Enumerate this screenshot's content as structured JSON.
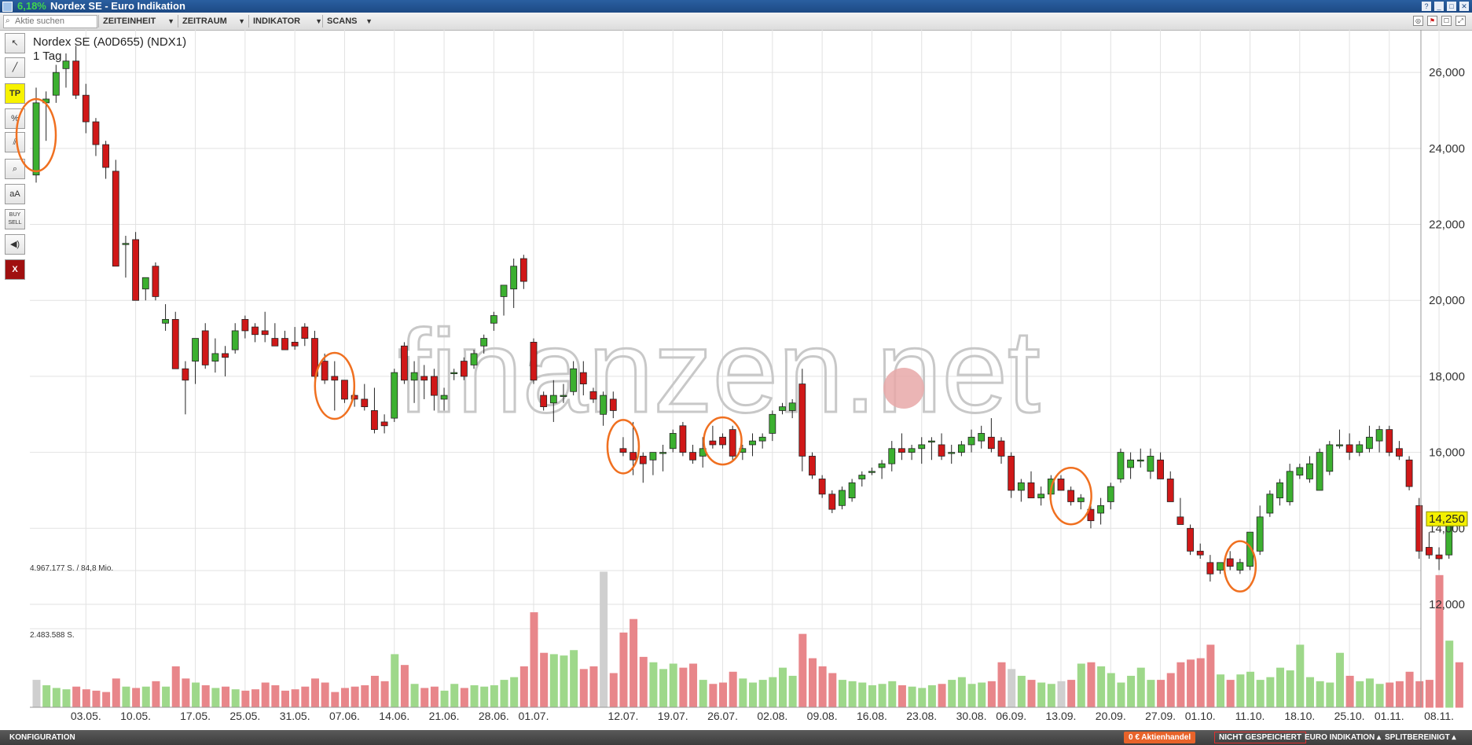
{
  "window": {
    "change_pct": "6,18%",
    "title": "Nordex SE - Euro Indikation"
  },
  "toolbar": {
    "search_placeholder": "Aktie suchen",
    "menus": [
      "ZEITEINHEIT",
      "ZEITRAUM",
      "INDIKATOR",
      "SCANS"
    ]
  },
  "side_tools": [
    {
      "name": "cursor-icon",
      "label": "↖"
    },
    {
      "name": "line-icon",
      "label": "╱"
    },
    {
      "name": "tp-icon",
      "label": "TP"
    },
    {
      "name": "percent-icon",
      "label": "%"
    },
    {
      "name": "parallel-lines-icon",
      "label": "⫽"
    },
    {
      "name": "zoom-icon",
      "label": "⌕"
    },
    {
      "name": "text-size-icon",
      "label": "aA"
    },
    {
      "name": "buy-sell-icon",
      "label": "BUY SELL"
    },
    {
      "name": "sound-icon",
      "label": "◀)"
    },
    {
      "name": "close-icon",
      "label": "X"
    }
  ],
  "status": {
    "config": "KONFIGURATION",
    "trading": "0 € Aktienhandel",
    "not_saved": "NICHT GESPEICHERT",
    "indication": "EURO INDIKATION ▴",
    "split": "SPLITBEREINIGT ▴"
  },
  "colors": {
    "up": "#3cb030",
    "down": "#d01818",
    "vol_up": "#9ed88a",
    "vol_down": "#e8868a",
    "annot": "#f07020"
  },
  "chart_data": {
    "type": "candlestick",
    "title": "Nordex SE (A0D655) (NDX1)",
    "subtitle": "1 Tag",
    "watermark": "finanzen.net",
    "price_ticks": [
      12000,
      14000,
      16000,
      18000,
      20000,
      22000,
      24000,
      26000
    ],
    "price_tick_labels": [
      "12,000",
      "14,000",
      "16,000",
      "18,000",
      "20,000",
      "22,000",
      "24,000",
      "26,000"
    ],
    "last_price_label": "14,250",
    "volume_labels": [
      "4.967.177 S. / 84,8 Mio.",
      "2.483.588 S."
    ],
    "x_labels": [
      "03.05.",
      "10.05.",
      "17.05.",
      "25.05.",
      "31.05.",
      "07.06.",
      "14.06.",
      "21.06.",
      "28.06.",
      "01.07.",
      "12.07.",
      "19.07.",
      "26.07.",
      "02.08.",
      "09.08.",
      "16.08.",
      "23.08.",
      "30.08.",
      "06.09.",
      "13.09.",
      "20.09.",
      "27.09.",
      "01.10.",
      "11.10.",
      "18.10.",
      "25.10.",
      "01.11.",
      "08.11."
    ],
    "candles": [
      {
        "o": 23300,
        "h": 25600,
        "l": 23100,
        "c": 25200
      },
      {
        "o": 25200,
        "h": 25500,
        "l": 24200,
        "c": 25300
      },
      {
        "o": 25400,
        "h": 26200,
        "l": 25200,
        "c": 26000
      },
      {
        "o": 26100,
        "h": 26500,
        "l": 25600,
        "c": 26300
      },
      {
        "o": 26300,
        "h": 26700,
        "l": 25300,
        "c": 25400
      },
      {
        "o": 25400,
        "h": 25700,
        "l": 24400,
        "c": 24700
      },
      {
        "o": 24700,
        "h": 24800,
        "l": 23800,
        "c": 24100
      },
      {
        "o": 24100,
        "h": 24200,
        "l": 23200,
        "c": 23500
      },
      {
        "o": 23400,
        "h": 23700,
        "l": 20900,
        "c": 20900
      },
      {
        "o": 21500,
        "h": 21700,
        "l": 20600,
        "c": 21500
      },
      {
        "o": 21600,
        "h": 21800,
        "l": 20000,
        "c": 20000
      },
      {
        "o": 20300,
        "h": 20600,
        "l": 20000,
        "c": 20600
      },
      {
        "o": 20900,
        "h": 21000,
        "l": 20000,
        "c": 20100
      },
      {
        "o": 19400,
        "h": 19900,
        "l": 19200,
        "c": 19500
      },
      {
        "o": 19500,
        "h": 19700,
        "l": 18200,
        "c": 18200
      },
      {
        "o": 18200,
        "h": 18400,
        "l": 17000,
        "c": 17900
      },
      {
        "o": 18400,
        "h": 19000,
        "l": 17800,
        "c": 19000
      },
      {
        "o": 19200,
        "h": 19400,
        "l": 18200,
        "c": 18300
      },
      {
        "o": 18400,
        "h": 19000,
        "l": 18100,
        "c": 18600
      },
      {
        "o": 18600,
        "h": 18800,
        "l": 18000,
        "c": 18500
      },
      {
        "o": 18700,
        "h": 19400,
        "l": 18600,
        "c": 19200
      },
      {
        "o": 19500,
        "h": 19600,
        "l": 19000,
        "c": 19200
      },
      {
        "o": 19300,
        "h": 19400,
        "l": 18900,
        "c": 19100
      },
      {
        "o": 19200,
        "h": 19700,
        "l": 18900,
        "c": 19100
      },
      {
        "o": 19000,
        "h": 19400,
        "l": 18800,
        "c": 18800
      },
      {
        "o": 19000,
        "h": 19200,
        "l": 18800,
        "c": 18700
      },
      {
        "o": 18900,
        "h": 19300,
        "l": 18700,
        "c": 18800
      },
      {
        "o": 19300,
        "h": 19400,
        "l": 18800,
        "c": 19000
      },
      {
        "o": 19000,
        "h": 19200,
        "l": 17900,
        "c": 18000
      },
      {
        "o": 18400,
        "h": 18600,
        "l": 17800,
        "c": 17900
      },
      {
        "o": 18000,
        "h": 18400,
        "l": 17100,
        "c": 17900
      },
      {
        "o": 17900,
        "h": 17900,
        "l": 17300,
        "c": 17400
      },
      {
        "o": 17500,
        "h": 17800,
        "l": 17200,
        "c": 17400
      },
      {
        "o": 17400,
        "h": 17800,
        "l": 17100,
        "c": 17200
      },
      {
        "o": 17100,
        "h": 17700,
        "l": 16500,
        "c": 16600
      },
      {
        "o": 16800,
        "h": 17000,
        "l": 16500,
        "c": 16700
      },
      {
        "o": 16900,
        "h": 18200,
        "l": 16800,
        "c": 18100
      },
      {
        "o": 18800,
        "h": 18900,
        "l": 17800,
        "c": 17900
      },
      {
        "o": 17900,
        "h": 18400,
        "l": 17300,
        "c": 18100
      },
      {
        "o": 18000,
        "h": 18300,
        "l": 17400,
        "c": 17900
      },
      {
        "o": 18000,
        "h": 18200,
        "l": 17100,
        "c": 17500
      },
      {
        "o": 17400,
        "h": 17700,
        "l": 17100,
        "c": 17500
      },
      {
        "o": 18100,
        "h": 18200,
        "l": 17900,
        "c": 18100
      },
      {
        "o": 18400,
        "h": 18500,
        "l": 17900,
        "c": 18000
      },
      {
        "o": 18300,
        "h": 18700,
        "l": 18200,
        "c": 18600
      },
      {
        "o": 18800,
        "h": 19100,
        "l": 18600,
        "c": 19000
      },
      {
        "o": 19400,
        "h": 19700,
        "l": 19200,
        "c": 19600
      },
      {
        "o": 20100,
        "h": 20400,
        "l": 19600,
        "c": 20400
      },
      {
        "o": 20300,
        "h": 21100,
        "l": 19800,
        "c": 20900
      },
      {
        "o": 21100,
        "h": 21200,
        "l": 20300,
        "c": 20500
      },
      {
        "o": 18900,
        "h": 19000,
        "l": 17800,
        "c": 17900
      },
      {
        "o": 17500,
        "h": 17600,
        "l": 17100,
        "c": 17200
      },
      {
        "o": 17300,
        "h": 17900,
        "l": 16800,
        "c": 17500
      },
      {
        "o": 17500,
        "h": 17800,
        "l": 17300,
        "c": 17500
      },
      {
        "o": 17600,
        "h": 18400,
        "l": 17500,
        "c": 18200
      },
      {
        "o": 18100,
        "h": 18400,
        "l": 17500,
        "c": 17800
      },
      {
        "o": 17600,
        "h": 17700,
        "l": 17300,
        "c": 17400
      },
      {
        "o": 17000,
        "h": 17600,
        "l": 16700,
        "c": 17500
      },
      {
        "o": 17400,
        "h": 17600,
        "l": 16900,
        "c": 17100
      },
      {
        "o": 16100,
        "h": 16400,
        "l": 15900,
        "c": 16000
      },
      {
        "o": 16000,
        "h": 16800,
        "l": 15400,
        "c": 15800
      },
      {
        "o": 15900,
        "h": 16000,
        "l": 15200,
        "c": 15700
      },
      {
        "o": 15800,
        "h": 16000,
        "l": 15400,
        "c": 16000
      },
      {
        "o": 16000,
        "h": 16200,
        "l": 15500,
        "c": 16000
      },
      {
        "o": 16100,
        "h": 16600,
        "l": 16000,
        "c": 16500
      },
      {
        "o": 16700,
        "h": 16800,
        "l": 15900,
        "c": 16000
      },
      {
        "o": 16000,
        "h": 16200,
        "l": 15700,
        "c": 15800
      },
      {
        "o": 15900,
        "h": 16400,
        "l": 15600,
        "c": 16100
      },
      {
        "o": 16300,
        "h": 16700,
        "l": 16100,
        "c": 16200
      },
      {
        "o": 16400,
        "h": 16500,
        "l": 16100,
        "c": 16200
      },
      {
        "o": 16600,
        "h": 16700,
        "l": 15800,
        "c": 15900
      },
      {
        "o": 16000,
        "h": 16200,
        "l": 15800,
        "c": 16100
      },
      {
        "o": 16200,
        "h": 16500,
        "l": 15900,
        "c": 16300
      },
      {
        "o": 16300,
        "h": 16500,
        "l": 16100,
        "c": 16400
      },
      {
        "o": 16500,
        "h": 17100,
        "l": 16300,
        "c": 17000
      },
      {
        "o": 17100,
        "h": 17300,
        "l": 17000,
        "c": 17200
      },
      {
        "o": 17100,
        "h": 17400,
        "l": 16900,
        "c": 17300
      },
      {
        "o": 17800,
        "h": 18200,
        "l": 15500,
        "c": 15900
      },
      {
        "o": 15900,
        "h": 16000,
        "l": 15300,
        "c": 15400
      },
      {
        "o": 15300,
        "h": 15400,
        "l": 14800,
        "c": 14900
      },
      {
        "o": 14900,
        "h": 15000,
        "l": 14400,
        "c": 14500
      },
      {
        "o": 14600,
        "h": 15100,
        "l": 14500,
        "c": 15000
      },
      {
        "o": 14800,
        "h": 15300,
        "l": 14700,
        "c": 15200
      },
      {
        "o": 15300,
        "h": 15500,
        "l": 15100,
        "c": 15400
      },
      {
        "o": 15500,
        "h": 15600,
        "l": 15400,
        "c": 15500
      },
      {
        "o": 15600,
        "h": 15800,
        "l": 15300,
        "c": 15700
      },
      {
        "o": 15700,
        "h": 16300,
        "l": 15500,
        "c": 16100
      },
      {
        "o": 16100,
        "h": 16500,
        "l": 15800,
        "c": 16000
      },
      {
        "o": 16000,
        "h": 16200,
        "l": 15800,
        "c": 16100
      },
      {
        "o": 16100,
        "h": 16400,
        "l": 15700,
        "c": 16200
      },
      {
        "o": 16300,
        "h": 16400,
        "l": 15800,
        "c": 16300
      },
      {
        "o": 16200,
        "h": 16500,
        "l": 15800,
        "c": 15900
      },
      {
        "o": 16000,
        "h": 16200,
        "l": 15700,
        "c": 16000
      },
      {
        "o": 16000,
        "h": 16300,
        "l": 15900,
        "c": 16200
      },
      {
        "o": 16200,
        "h": 16600,
        "l": 16000,
        "c": 16400
      },
      {
        "o": 16300,
        "h": 16700,
        "l": 16100,
        "c": 16500
      },
      {
        "o": 16400,
        "h": 16900,
        "l": 16000,
        "c": 16100
      },
      {
        "o": 16300,
        "h": 16400,
        "l": 15700,
        "c": 15900
      },
      {
        "o": 15900,
        "h": 16000,
        "l": 14800,
        "c": 15000
      },
      {
        "o": 15000,
        "h": 15300,
        "l": 14700,
        "c": 15200
      },
      {
        "o": 15200,
        "h": 15500,
        "l": 14800,
        "c": 14800
      },
      {
        "o": 14800,
        "h": 15100,
        "l": 14600,
        "c": 14900
      },
      {
        "o": 14900,
        "h": 15400,
        "l": 14700,
        "c": 15300
      },
      {
        "o": 15300,
        "h": 15400,
        "l": 15000,
        "c": 15000
      },
      {
        "o": 15000,
        "h": 15100,
        "l": 14600,
        "c": 14700
      },
      {
        "o": 14700,
        "h": 14900,
        "l": 14500,
        "c": 14800
      },
      {
        "o": 14500,
        "h": 14600,
        "l": 14000,
        "c": 14200
      },
      {
        "o": 14400,
        "h": 14800,
        "l": 14100,
        "c": 14600
      },
      {
        "o": 14700,
        "h": 15200,
        "l": 14500,
        "c": 15100
      },
      {
        "o": 15300,
        "h": 16100,
        "l": 15200,
        "c": 16000
      },
      {
        "o": 15600,
        "h": 16000,
        "l": 15300,
        "c": 15800
      },
      {
        "o": 15800,
        "h": 16100,
        "l": 15600,
        "c": 15800
      },
      {
        "o": 15500,
        "h": 16100,
        "l": 15300,
        "c": 15900
      },
      {
        "o": 15800,
        "h": 16000,
        "l": 15300,
        "c": 15300
      },
      {
        "o": 15300,
        "h": 15500,
        "l": 14700,
        "c": 14700
      },
      {
        "o": 14300,
        "h": 14800,
        "l": 14100,
        "c": 14100
      },
      {
        "o": 14000,
        "h": 14100,
        "l": 13300,
        "c": 13400
      },
      {
        "o": 13400,
        "h": 13600,
        "l": 13200,
        "c": 13300
      },
      {
        "o": 13100,
        "h": 13300,
        "l": 12600,
        "c": 12800
      },
      {
        "o": 12900,
        "h": 13100,
        "l": 12800,
        "c": 13100
      },
      {
        "o": 13200,
        "h": 13400,
        "l": 12900,
        "c": 13000
      },
      {
        "o": 12900,
        "h": 13200,
        "l": 12800,
        "c": 13100
      },
      {
        "o": 13000,
        "h": 13900,
        "l": 12900,
        "c": 13900
      },
      {
        "o": 13400,
        "h": 14600,
        "l": 13300,
        "c": 14300
      },
      {
        "o": 14400,
        "h": 15000,
        "l": 14300,
        "c": 14900
      },
      {
        "o": 14800,
        "h": 15300,
        "l": 14600,
        "c": 15200
      },
      {
        "o": 14700,
        "h": 15700,
        "l": 14600,
        "c": 15500
      },
      {
        "o": 15400,
        "h": 15700,
        "l": 15300,
        "c": 15600
      },
      {
        "o": 15300,
        "h": 15900,
        "l": 15200,
        "c": 15700
      },
      {
        "o": 15000,
        "h": 16100,
        "l": 15000,
        "c": 16000
      },
      {
        "o": 15500,
        "h": 16300,
        "l": 15400,
        "c": 16200
      },
      {
        "o": 16200,
        "h": 16600,
        "l": 16100,
        "c": 16200
      },
      {
        "o": 16200,
        "h": 16500,
        "l": 15800,
        "c": 16000
      },
      {
        "o": 16000,
        "h": 16300,
        "l": 15900,
        "c": 16200
      },
      {
        "o": 16100,
        "h": 16700,
        "l": 16000,
        "c": 16400
      },
      {
        "o": 16300,
        "h": 16700,
        "l": 16000,
        "c": 16600
      },
      {
        "o": 16600,
        "h": 16700,
        "l": 15900,
        "c": 16000
      },
      {
        "o": 16100,
        "h": 16300,
        "l": 15800,
        "c": 15900
      },
      {
        "o": 15800,
        "h": 15900,
        "l": 15000,
        "c": 15100
      },
      {
        "o": 14600,
        "h": 14800,
        "l": 13200,
        "c": 13400
      },
      {
        "o": 13500,
        "h": 13900,
        "l": 13200,
        "c": 13300
      },
      {
        "o": 13300,
        "h": 13500,
        "l": 12900,
        "c": 13200
      },
      {
        "o": 13300,
        "h": 14300,
        "l": 13200,
        "c": 14250
      }
    ],
    "volumes": [
      0.4,
      0.32,
      0.28,
      0.26,
      0.3,
      0.26,
      0.24,
      0.22,
      0.42,
      0.3,
      0.28,
      0.3,
      0.38,
      0.3,
      0.6,
      0.42,
      0.36,
      0.32,
      0.28,
      0.3,
      0.26,
      0.24,
      0.26,
      0.36,
      0.32,
      0.24,
      0.26,
      0.3,
      0.42,
      0.36,
      0.22,
      0.28,
      0.3,
      0.32,
      0.46,
      0.38,
      0.78,
      0.62,
      0.34,
      0.28,
      0.3,
      0.24,
      0.34,
      0.28,
      0.32,
      0.3,
      0.32,
      0.4,
      0.44,
      0.6,
      1.4,
      0.8,
      0.78,
      0.76,
      0.84,
      0.56,
      0.6,
      2.0,
      0.5,
      1.1,
      1.3,
      0.74,
      0.66,
      0.56,
      0.64,
      0.58,
      0.64,
      0.4,
      0.34,
      0.36,
      0.52,
      0.42,
      0.36,
      0.4,
      0.44,
      0.58,
      0.46,
      1.08,
      0.72,
      0.6,
      0.5,
      0.4,
      0.38,
      0.36,
      0.32,
      0.34,
      0.38,
      0.32,
      0.3,
      0.28,
      0.32,
      0.34,
      0.4,
      0.44,
      0.34,
      0.36,
      0.38,
      0.66,
      0.56,
      0.46,
      0.4,
      0.36,
      0.34,
      0.38,
      0.4,
      0.64,
      0.66,
      0.6,
      0.5,
      0.36,
      0.46,
      0.58,
      0.4,
      0.4,
      0.5,
      0.66,
      0.7,
      0.72,
      0.92,
      0.48,
      0.4,
      0.48,
      0.52,
      0.4,
      0.44,
      0.58,
      0.54,
      0.92,
      0.44,
      0.38,
      0.36,
      0.8,
      0.46,
      0.38,
      0.42,
      0.34,
      0.36,
      0.38,
      0.52,
      0.38,
      0.4,
      1.95,
      0.98,
      0.66
    ],
    "vol_gray": [
      0,
      57,
      98,
      103
    ],
    "y_range": [
      11400,
      26500
    ]
  }
}
